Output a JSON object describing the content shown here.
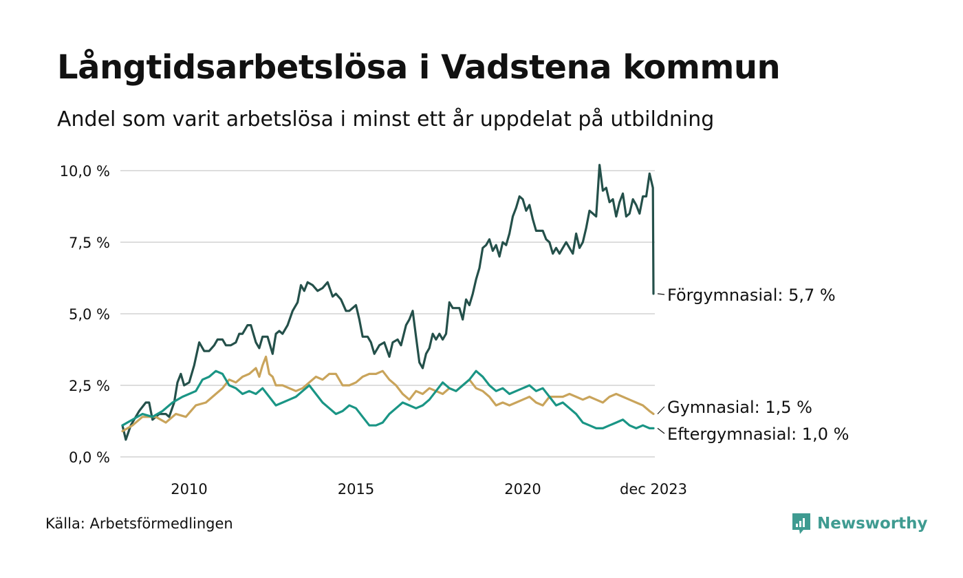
{
  "title": "Långtidsarbetslösa i Vadstena kommun",
  "subtitle": "Andel som varit arbetslösa i minst ett år uppdelat på utbildning",
  "source": "Källa: Arbetsförmedlingen",
  "brand": {
    "name": "Newsworthy",
    "icon": "newsworthy-logo-icon",
    "color": "#3f9b91"
  },
  "chart_data": {
    "type": "line",
    "title": "Långtidsarbetslösa i Vadstena kommun",
    "xlabel": "",
    "ylabel": "",
    "ylim": [
      0,
      10
    ],
    "xlim": [
      2008.0,
      2023.917
    ],
    "grid": true,
    "yticks": [
      0,
      2.5,
      5,
      7.5,
      10
    ],
    "ytick_labels": [
      "0,0 %",
      "2,5 %",
      "5,0 %",
      "7,5 %",
      "10,0 %"
    ],
    "xticks": [
      2010,
      2015,
      2020,
      2023.917
    ],
    "xtick_labels": [
      "2010",
      "2015",
      "2020",
      "dec 2023"
    ],
    "series": [
      {
        "name": "Förgymnasial",
        "label": "Förgymnasial: 5,7 %",
        "color": "#24504a",
        "points": [
          [
            2008.0,
            1.1
          ],
          [
            2008.1,
            0.6
          ],
          [
            2008.25,
            1.1
          ],
          [
            2008.5,
            1.6
          ],
          [
            2008.7,
            1.9
          ],
          [
            2008.8,
            1.9
          ],
          [
            2008.9,
            1.3
          ],
          [
            2009.1,
            1.5
          ],
          [
            2009.3,
            1.5
          ],
          [
            2009.4,
            1.4
          ],
          [
            2009.55,
            1.9
          ],
          [
            2009.65,
            2.6
          ],
          [
            2009.75,
            2.9
          ],
          [
            2009.85,
            2.5
          ],
          [
            2010.0,
            2.6
          ],
          [
            2010.15,
            3.2
          ],
          [
            2010.3,
            4.0
          ],
          [
            2010.45,
            3.7
          ],
          [
            2010.6,
            3.7
          ],
          [
            2010.75,
            3.9
          ],
          [
            2010.85,
            4.1
          ],
          [
            2011.0,
            4.1
          ],
          [
            2011.1,
            3.9
          ],
          [
            2011.25,
            3.9
          ],
          [
            2011.4,
            4.0
          ],
          [
            2011.5,
            4.3
          ],
          [
            2011.6,
            4.3
          ],
          [
            2011.75,
            4.6
          ],
          [
            2011.85,
            4.6
          ],
          [
            2012.0,
            4.0
          ],
          [
            2012.1,
            3.8
          ],
          [
            2012.2,
            4.2
          ],
          [
            2012.35,
            4.2
          ],
          [
            2012.5,
            3.6
          ],
          [
            2012.6,
            4.3
          ],
          [
            2012.7,
            4.4
          ],
          [
            2012.8,
            4.3
          ],
          [
            2012.95,
            4.6
          ],
          [
            2013.1,
            5.1
          ],
          [
            2013.25,
            5.4
          ],
          [
            2013.35,
            6.0
          ],
          [
            2013.45,
            5.8
          ],
          [
            2013.55,
            6.1
          ],
          [
            2013.7,
            6.0
          ],
          [
            2013.85,
            5.8
          ],
          [
            2014.0,
            5.9
          ],
          [
            2014.15,
            6.1
          ],
          [
            2014.3,
            5.6
          ],
          [
            2014.4,
            5.7
          ],
          [
            2014.55,
            5.5
          ],
          [
            2014.7,
            5.1
          ],
          [
            2014.8,
            5.1
          ],
          [
            2015.0,
            5.3
          ],
          [
            2015.1,
            4.8
          ],
          [
            2015.2,
            4.2
          ],
          [
            2015.35,
            4.2
          ],
          [
            2015.45,
            4.0
          ],
          [
            2015.55,
            3.6
          ],
          [
            2015.7,
            3.9
          ],
          [
            2015.85,
            4.0
          ],
          [
            2016.0,
            3.5
          ],
          [
            2016.1,
            4.0
          ],
          [
            2016.25,
            4.1
          ],
          [
            2016.35,
            3.9
          ],
          [
            2016.5,
            4.6
          ],
          [
            2016.6,
            4.8
          ],
          [
            2016.7,
            5.1
          ],
          [
            2016.8,
            4.2
          ],
          [
            2016.9,
            3.3
          ],
          [
            2017.0,
            3.1
          ],
          [
            2017.1,
            3.6
          ],
          [
            2017.2,
            3.8
          ],
          [
            2017.3,
            4.3
          ],
          [
            2017.4,
            4.1
          ],
          [
            2017.5,
            4.3
          ],
          [
            2017.6,
            4.1
          ],
          [
            2017.7,
            4.3
          ],
          [
            2017.8,
            5.4
          ],
          [
            2017.9,
            5.2
          ],
          [
            2018.0,
            5.2
          ],
          [
            2018.1,
            5.2
          ],
          [
            2018.2,
            4.8
          ],
          [
            2018.3,
            5.5
          ],
          [
            2018.4,
            5.3
          ],
          [
            2018.5,
            5.7
          ],
          [
            2018.6,
            6.2
          ],
          [
            2018.7,
            6.6
          ],
          [
            2018.8,
            7.3
          ],
          [
            2018.9,
            7.4
          ],
          [
            2019.0,
            7.6
          ],
          [
            2019.1,
            7.2
          ],
          [
            2019.2,
            7.4
          ],
          [
            2019.3,
            7.0
          ],
          [
            2019.4,
            7.5
          ],
          [
            2019.5,
            7.4
          ],
          [
            2019.6,
            7.8
          ],
          [
            2019.7,
            8.4
          ],
          [
            2019.8,
            8.7
          ],
          [
            2019.9,
            9.1
          ],
          [
            2020.0,
            9.0
          ],
          [
            2020.1,
            8.6
          ],
          [
            2020.2,
            8.8
          ],
          [
            2020.3,
            8.3
          ],
          [
            2020.4,
            7.9
          ],
          [
            2020.5,
            7.9
          ],
          [
            2020.6,
            7.9
          ],
          [
            2020.7,
            7.6
          ],
          [
            2020.8,
            7.5
          ],
          [
            2020.9,
            7.1
          ],
          [
            2021.0,
            7.3
          ],
          [
            2021.1,
            7.1
          ],
          [
            2021.2,
            7.3
          ],
          [
            2021.3,
            7.5
          ],
          [
            2021.4,
            7.3
          ],
          [
            2021.5,
            7.1
          ],
          [
            2021.6,
            7.8
          ],
          [
            2021.7,
            7.3
          ],
          [
            2021.8,
            7.5
          ],
          [
            2021.9,
            8.0
          ],
          [
            2022.0,
            8.6
          ],
          [
            2022.1,
            8.5
          ],
          [
            2022.2,
            8.4
          ],
          [
            2022.3,
            10.2
          ],
          [
            2022.4,
            9.3
          ],
          [
            2022.5,
            9.4
          ],
          [
            2022.6,
            8.9
          ],
          [
            2022.7,
            9.0
          ],
          [
            2022.8,
            8.4
          ],
          [
            2022.9,
            8.9
          ],
          [
            2023.0,
            9.2
          ],
          [
            2023.1,
            8.4
          ],
          [
            2023.2,
            8.5
          ],
          [
            2023.3,
            9.0
          ],
          [
            2023.4,
            8.8
          ],
          [
            2023.5,
            8.5
          ],
          [
            2023.6,
            9.1
          ],
          [
            2023.7,
            9.1
          ],
          [
            2023.8,
            9.9
          ],
          [
            2023.9,
            9.4
          ],
          [
            2023.917,
            5.7
          ]
        ]
      },
      {
        "name": "Gymnasial",
        "label": "Gymnasial: 1,5 %",
        "color": "#c9a45b",
        "points": [
          [
            2008.0,
            0.9
          ],
          [
            2008.3,
            1.1
          ],
          [
            2008.6,
            1.4
          ],
          [
            2009.0,
            1.4
          ],
          [
            2009.3,
            1.2
          ],
          [
            2009.6,
            1.5
          ],
          [
            2009.9,
            1.4
          ],
          [
            2010.2,
            1.8
          ],
          [
            2010.5,
            1.9
          ],
          [
            2010.8,
            2.2
          ],
          [
            2011.0,
            2.4
          ],
          [
            2011.2,
            2.7
          ],
          [
            2011.4,
            2.6
          ],
          [
            2011.6,
            2.8
          ],
          [
            2011.8,
            2.9
          ],
          [
            2012.0,
            3.1
          ],
          [
            2012.1,
            2.8
          ],
          [
            2012.2,
            3.2
          ],
          [
            2012.3,
            3.5
          ],
          [
            2012.4,
            2.9
          ],
          [
            2012.5,
            2.8
          ],
          [
            2012.6,
            2.5
          ],
          [
            2012.8,
            2.5
          ],
          [
            2013.0,
            2.4
          ],
          [
            2013.2,
            2.3
          ],
          [
            2013.4,
            2.4
          ],
          [
            2013.6,
            2.6
          ],
          [
            2013.8,
            2.8
          ],
          [
            2014.0,
            2.7
          ],
          [
            2014.2,
            2.9
          ],
          [
            2014.4,
            2.9
          ],
          [
            2014.6,
            2.5
          ],
          [
            2014.8,
            2.5
          ],
          [
            2015.0,
            2.6
          ],
          [
            2015.2,
            2.8
          ],
          [
            2015.4,
            2.9
          ],
          [
            2015.6,
            2.9
          ],
          [
            2015.8,
            3.0
          ],
          [
            2016.0,
            2.7
          ],
          [
            2016.2,
            2.5
          ],
          [
            2016.4,
            2.2
          ],
          [
            2016.6,
            2.0
          ],
          [
            2016.8,
            2.3
          ],
          [
            2017.0,
            2.2
          ],
          [
            2017.2,
            2.4
          ],
          [
            2017.4,
            2.3
          ],
          [
            2017.6,
            2.2
          ],
          [
            2017.8,
            2.4
          ],
          [
            2018.0,
            2.3
          ],
          [
            2018.2,
            2.5
          ],
          [
            2018.4,
            2.7
          ],
          [
            2018.6,
            2.4
          ],
          [
            2018.8,
            2.3
          ],
          [
            2019.0,
            2.1
          ],
          [
            2019.2,
            1.8
          ],
          [
            2019.4,
            1.9
          ],
          [
            2019.6,
            1.8
          ],
          [
            2019.8,
            1.9
          ],
          [
            2020.0,
            2.0
          ],
          [
            2020.2,
            2.1
          ],
          [
            2020.4,
            1.9
          ],
          [
            2020.6,
            1.8
          ],
          [
            2020.8,
            2.1
          ],
          [
            2021.0,
            2.1
          ],
          [
            2021.2,
            2.1
          ],
          [
            2021.4,
            2.2
          ],
          [
            2021.6,
            2.1
          ],
          [
            2021.8,
            2.0
          ],
          [
            2022.0,
            2.1
          ],
          [
            2022.2,
            2.0
          ],
          [
            2022.4,
            1.9
          ],
          [
            2022.6,
            2.1
          ],
          [
            2022.8,
            2.2
          ],
          [
            2023.0,
            2.1
          ],
          [
            2023.2,
            2.0
          ],
          [
            2023.4,
            1.9
          ],
          [
            2023.6,
            1.8
          ],
          [
            2023.8,
            1.6
          ],
          [
            2023.917,
            1.5
          ]
        ]
      },
      {
        "name": "Eftergymnasial",
        "label": "Eftergymnasial: 1,0 %",
        "color": "#1a9585",
        "points": [
          [
            2008.0,
            1.1
          ],
          [
            2008.3,
            1.3
          ],
          [
            2008.6,
            1.5
          ],
          [
            2008.9,
            1.4
          ],
          [
            2009.2,
            1.6
          ],
          [
            2009.5,
            1.9
          ],
          [
            2009.8,
            2.1
          ],
          [
            2010.0,
            2.2
          ],
          [
            2010.2,
            2.3
          ],
          [
            2010.4,
            2.7
          ],
          [
            2010.6,
            2.8
          ],
          [
            2010.8,
            3.0
          ],
          [
            2011.0,
            2.9
          ],
          [
            2011.2,
            2.5
          ],
          [
            2011.4,
            2.4
          ],
          [
            2011.6,
            2.2
          ],
          [
            2011.8,
            2.3
          ],
          [
            2012.0,
            2.2
          ],
          [
            2012.2,
            2.4
          ],
          [
            2012.4,
            2.1
          ],
          [
            2012.6,
            1.8
          ],
          [
            2012.8,
            1.9
          ],
          [
            2013.0,
            2.0
          ],
          [
            2013.2,
            2.1
          ],
          [
            2013.4,
            2.3
          ],
          [
            2013.6,
            2.5
          ],
          [
            2013.8,
            2.2
          ],
          [
            2014.0,
            1.9
          ],
          [
            2014.2,
            1.7
          ],
          [
            2014.4,
            1.5
          ],
          [
            2014.6,
            1.6
          ],
          [
            2014.8,
            1.8
          ],
          [
            2015.0,
            1.7
          ],
          [
            2015.2,
            1.4
          ],
          [
            2015.4,
            1.1
          ],
          [
            2015.6,
            1.1
          ],
          [
            2015.8,
            1.2
          ],
          [
            2016.0,
            1.5
          ],
          [
            2016.2,
            1.7
          ],
          [
            2016.4,
            1.9
          ],
          [
            2016.6,
            1.8
          ],
          [
            2016.8,
            1.7
          ],
          [
            2017.0,
            1.8
          ],
          [
            2017.2,
            2.0
          ],
          [
            2017.4,
            2.3
          ],
          [
            2017.6,
            2.6
          ],
          [
            2017.8,
            2.4
          ],
          [
            2018.0,
            2.3
          ],
          [
            2018.2,
            2.5
          ],
          [
            2018.4,
            2.7
          ],
          [
            2018.6,
            3.0
          ],
          [
            2018.8,
            2.8
          ],
          [
            2019.0,
            2.5
          ],
          [
            2019.2,
            2.3
          ],
          [
            2019.4,
            2.4
          ],
          [
            2019.6,
            2.2
          ],
          [
            2019.8,
            2.3
          ],
          [
            2020.0,
            2.4
          ],
          [
            2020.2,
            2.5
          ],
          [
            2020.4,
            2.3
          ],
          [
            2020.6,
            2.4
          ],
          [
            2020.8,
            2.1
          ],
          [
            2021.0,
            1.8
          ],
          [
            2021.2,
            1.9
          ],
          [
            2021.4,
            1.7
          ],
          [
            2021.6,
            1.5
          ],
          [
            2021.8,
            1.2
          ],
          [
            2022.0,
            1.1
          ],
          [
            2022.2,
            1.0
          ],
          [
            2022.4,
            1.0
          ],
          [
            2022.6,
            1.1
          ],
          [
            2022.8,
            1.2
          ],
          [
            2023.0,
            1.3
          ],
          [
            2023.2,
            1.1
          ],
          [
            2023.4,
            1.0
          ],
          [
            2023.6,
            1.1
          ],
          [
            2023.8,
            1.0
          ],
          [
            2023.917,
            1.0
          ]
        ]
      }
    ]
  }
}
